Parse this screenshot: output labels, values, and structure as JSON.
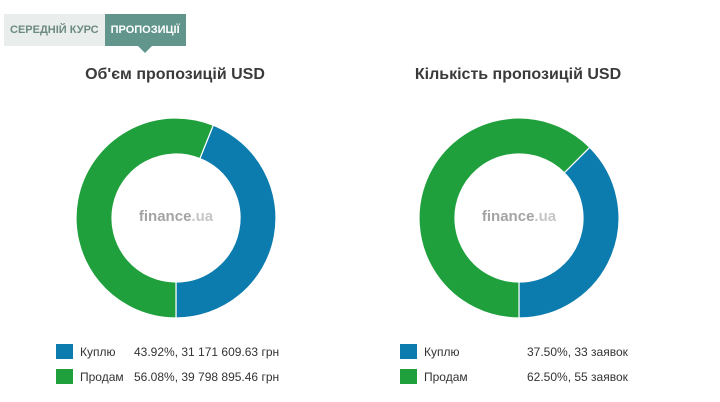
{
  "tabs": [
    {
      "label": "СЕРЕДНІЙ КУРС",
      "active": false
    },
    {
      "label": "ПРОПОЗИЦІЇ",
      "active": true
    }
  ],
  "watermark": {
    "brand": "finance",
    "suffix": ".ua"
  },
  "colors": {
    "buy": "#0c7bad",
    "sell": "#1fa03d"
  },
  "chart_data": [
    {
      "type": "pie",
      "title": "Об'єм пропозицій USD",
      "slices": [
        {
          "label": "Куплю",
          "percent": 43.92,
          "value_text": "43.92%, 31 171 609.63 грн"
        },
        {
          "label": "Продам",
          "percent": 56.08,
          "value_text": "56.08%, 39 798 895.46 грн"
        }
      ]
    },
    {
      "type": "pie",
      "title": "Кількість пропозицій USD",
      "slices": [
        {
          "label": "Куплю",
          "percent": 37.5,
          "value_text": "37.50%, 33 заявок"
        },
        {
          "label": "Продам",
          "percent": 62.5,
          "value_text": "62.50%, 55 заявок"
        }
      ]
    }
  ]
}
